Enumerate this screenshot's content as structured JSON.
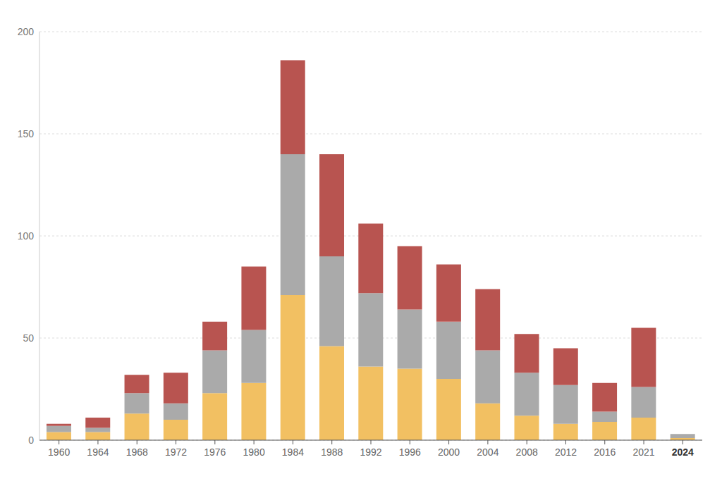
{
  "chart_data": {
    "type": "bar",
    "stacked": true,
    "grid": true,
    "categories": [
      "1960",
      "1964",
      "1968",
      "1972",
      "1976",
      "1980",
      "1984",
      "1988",
      "1992",
      "1996",
      "2000",
      "2004",
      "2008",
      "2012",
      "2016",
      "2021",
      "2024"
    ],
    "series": [
      {
        "color": "#f2c062",
        "values": [
          4,
          4,
          13,
          10,
          23,
          28,
          71,
          46,
          36,
          35,
          30,
          18,
          12,
          8,
          9,
          11,
          1
        ]
      },
      {
        "color": "#aaaaaa",
        "values": [
          3,
          2,
          10,
          8,
          21,
          26,
          69,
          44,
          36,
          29,
          28,
          26,
          21,
          19,
          5,
          15,
          2
        ]
      },
      {
        "color": "#b85450",
        "values": [
          1,
          5,
          9,
          15,
          14,
          31,
          46,
          50,
          34,
          31,
          28,
          30,
          19,
          18,
          14,
          29,
          0
        ]
      }
    ],
    "ylim": [
      0,
      200
    ],
    "yticks": [
      0,
      50,
      100,
      150,
      200
    ]
  }
}
